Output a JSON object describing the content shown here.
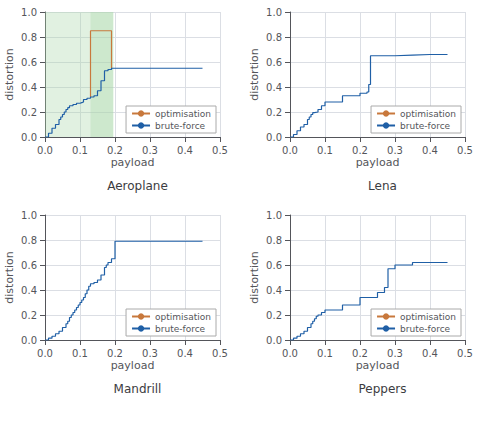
{
  "chart_data": [
    {
      "type": "line",
      "title": "Aeroplane",
      "xlabel": "payload",
      "ylabel": "distortion",
      "xlim": [
        0.0,
        0.5
      ],
      "ylim": [
        0.0,
        1.0
      ],
      "xticks": [
        {
          "value": 0.0,
          "label": "0.0"
        },
        0.1,
        0.2,
        0.3,
        0.4,
        0.5
      ],
      "yticks": [
        {
          "value": 0.0,
          "label": "0.0"
        },
        0.2,
        0.4,
        0.6,
        0.8,
        {
          "value": 1.0,
          "label": "1.0"
        }
      ],
      "grid": true,
      "legend": "lower right",
      "highlights": [
        {
          "x": [
            0.0,
            0.195
          ],
          "color": "#a8d8a8"
        },
        {
          "x": [
            0.13,
            0.195
          ],
          "color": "#a8d8a8"
        }
      ],
      "series": [
        {
          "name": "optimisation",
          "type": "line",
          "color": "#c8783c",
          "x": [
            0.13,
            0.13,
            0.19,
            0.19
          ],
          "values": [
            0.32,
            0.85,
            0.85,
            0.55
          ]
        },
        {
          "name": "brute-force",
          "type": "step",
          "color": "#1f5fa6",
          "x": [
            0.0,
            0.01,
            0.02,
            0.03,
            0.04,
            0.045,
            0.05,
            0.055,
            0.06,
            0.065,
            0.07,
            0.08,
            0.09,
            0.1,
            0.105,
            0.11,
            0.12,
            0.13,
            0.14,
            0.15,
            0.16,
            0.17,
            0.18,
            0.19,
            0.2,
            0.3,
            0.4,
            0.43,
            0.45
          ],
          "values": [
            0.0,
            0.03,
            0.07,
            0.1,
            0.14,
            0.16,
            0.18,
            0.2,
            0.22,
            0.235,
            0.25,
            0.26,
            0.27,
            0.275,
            0.28,
            0.3,
            0.31,
            0.32,
            0.33,
            0.37,
            0.45,
            0.53,
            0.54,
            0.55,
            0.55,
            0.55,
            0.55,
            0.55,
            0.55
          ]
        }
      ]
    },
    {
      "type": "line",
      "title": "Lena",
      "xlabel": "payload",
      "ylabel": "distortion",
      "xlim": [
        0.0,
        0.5
      ],
      "ylim": [
        0.0,
        1.0
      ],
      "xticks": [
        {
          "value": 0.0,
          "label": "0.0"
        },
        0.1,
        0.2,
        0.3,
        0.4,
        0.5
      ],
      "yticks": [
        {
          "value": 0.0,
          "label": "0.0"
        },
        0.2,
        0.4,
        0.6,
        0.8,
        {
          "value": 1.0,
          "label": "1.0"
        }
      ],
      "grid": true,
      "legend": "lower right",
      "series": [
        {
          "name": "optimisation",
          "type": "line",
          "color": "#c8783c",
          "x": [],
          "values": []
        },
        {
          "name": "brute-force",
          "type": "step",
          "color": "#1f5fa6",
          "x": [
            0.0,
            0.01,
            0.02,
            0.03,
            0.04,
            0.05,
            0.055,
            0.06,
            0.065,
            0.07,
            0.08,
            0.09,
            0.1,
            0.15,
            0.2,
            0.22,
            0.225,
            0.23,
            0.3,
            0.35,
            0.4,
            0.45
          ],
          "values": [
            0.0,
            0.02,
            0.05,
            0.08,
            0.1,
            0.14,
            0.16,
            0.18,
            0.195,
            0.2,
            0.22,
            0.25,
            0.28,
            0.33,
            0.35,
            0.36,
            0.42,
            0.65,
            0.655,
            0.66,
            0.66,
            0.66
          ]
        }
      ]
    },
    {
      "type": "line",
      "title": "Mandrill",
      "xlabel": "payload",
      "ylabel": "distortion",
      "xlim": [
        0.0,
        0.5
      ],
      "ylim": [
        0.0,
        1.0
      ],
      "xticks": [
        {
          "value": 0.0,
          "label": "0.0"
        },
        0.1,
        0.2,
        0.3,
        0.4,
        0.5
      ],
      "yticks": [
        {
          "value": 0.0,
          "label": "0.0"
        },
        0.2,
        0.4,
        0.6,
        0.8,
        {
          "value": 1.0,
          "label": "1.0"
        }
      ],
      "grid": true,
      "legend": "lower right",
      "series": [
        {
          "name": "optimisation",
          "type": "line",
          "color": "#c8783c",
          "x": [],
          "values": []
        },
        {
          "name": "brute-force",
          "type": "step",
          "color": "#1f5fa6",
          "x": [
            0.0,
            0.01,
            0.02,
            0.03,
            0.04,
            0.05,
            0.06,
            0.065,
            0.07,
            0.075,
            0.08,
            0.085,
            0.09,
            0.095,
            0.1,
            0.105,
            0.11,
            0.115,
            0.12,
            0.125,
            0.13,
            0.14,
            0.15,
            0.16,
            0.17,
            0.175,
            0.18,
            0.19,
            0.2,
            0.21,
            0.25,
            0.3,
            0.4,
            0.45
          ],
          "values": [
            0.0,
            0.015,
            0.03,
            0.05,
            0.07,
            0.1,
            0.13,
            0.15,
            0.18,
            0.2,
            0.22,
            0.24,
            0.26,
            0.28,
            0.3,
            0.32,
            0.34,
            0.37,
            0.4,
            0.43,
            0.45,
            0.46,
            0.48,
            0.52,
            0.58,
            0.6,
            0.62,
            0.65,
            0.79,
            0.79,
            0.79,
            0.79,
            0.79,
            0.79
          ]
        }
      ]
    },
    {
      "type": "line",
      "title": "Peppers",
      "xlabel": "payload",
      "ylabel": "distortion",
      "xlim": [
        0.0,
        0.5
      ],
      "ylim": [
        0.0,
        1.0
      ],
      "xticks": [
        {
          "value": 0.0,
          "label": "0.0"
        },
        0.1,
        0.2,
        0.3,
        0.4,
        0.5
      ],
      "yticks": [
        {
          "value": 0.0,
          "label": "0.0"
        },
        0.2,
        0.4,
        0.6,
        0.8,
        {
          "value": 1.0,
          "label": "1.0"
        }
      ],
      "grid": true,
      "legend": "lower right",
      "series": [
        {
          "name": "optimisation",
          "type": "line",
          "color": "#c8783c",
          "x": [],
          "values": []
        },
        {
          "name": "brute-force",
          "type": "step",
          "color": "#1f5fa6",
          "x": [
            0.0,
            0.01,
            0.02,
            0.03,
            0.04,
            0.05,
            0.06,
            0.065,
            0.07,
            0.075,
            0.08,
            0.09,
            0.1,
            0.15,
            0.2,
            0.25,
            0.27,
            0.28,
            0.3,
            0.35,
            0.4,
            0.45
          ],
          "values": [
            0.0,
            0.015,
            0.03,
            0.05,
            0.07,
            0.1,
            0.13,
            0.15,
            0.17,
            0.19,
            0.2,
            0.22,
            0.24,
            0.28,
            0.34,
            0.38,
            0.42,
            0.57,
            0.6,
            0.62,
            0.62,
            0.62
          ]
        }
      ]
    }
  ]
}
